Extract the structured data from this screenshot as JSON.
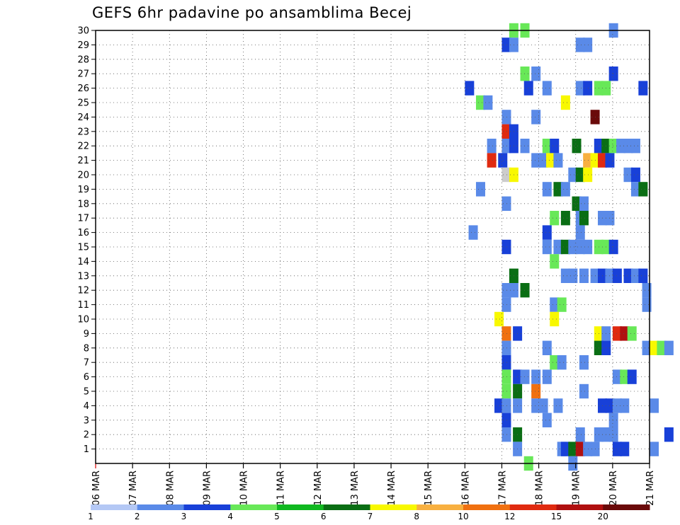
{
  "chart_data": {
    "type": "heatmap",
    "title": "GEFS 6hr padavine po ansamblima Becej",
    "xlabel": "",
    "ylabel": "",
    "x_range_days": [
      0,
      15
    ],
    "y_range": [
      0,
      30
    ],
    "x_tick_labels": [
      "06 MAR",
      "07 MAR",
      "08 MAR",
      "09 MAR",
      "10 MAR",
      "11 MAR",
      "12 MAR",
      "13 MAR",
      "14 MAR",
      "15 MAR",
      "16 MAR",
      "17 MAR",
      "18 MAR",
      "19 MAR",
      "20 MAR",
      "21 MAR"
    ],
    "y_tick_labels": [
      "1",
      "2",
      "3",
      "4",
      "5",
      "6",
      "7",
      "8",
      "9",
      "10",
      "11",
      "12",
      "13",
      "14",
      "15",
      "16",
      "17",
      "18",
      "19",
      "20",
      "21",
      "22",
      "23",
      "24",
      "25",
      "26",
      "27",
      "28",
      "29",
      "30"
    ],
    "grid": true,
    "legend_position": "bottom",
    "colorbar": {
      "labels": [
        "1",
        "2",
        "3",
        "4",
        "5",
        "6",
        "7",
        "8",
        "10",
        "12",
        "15",
        "20"
      ],
      "colors": [
        "#b4c8f5",
        "#5a8ae8",
        "#1840d8",
        "#68e858",
        "#10b820",
        "#0a6e14",
        "#f8f800",
        "#f8b040",
        "#f07010",
        "#e02a10",
        "#b01010",
        "#6a0a0a"
      ]
    },
    "cells": [
      [
        11.2,
        30,
        3
      ],
      [
        11.5,
        30,
        3
      ],
      [
        13.9,
        30,
        1
      ],
      [
        11.0,
        29,
        2
      ],
      [
        11.2,
        29,
        1
      ],
      [
        13.0,
        29,
        1
      ],
      [
        13.2,
        29,
        1
      ],
      [
        11.5,
        27,
        3
      ],
      [
        11.8,
        27,
        1
      ],
      [
        13.9,
        27,
        2
      ],
      [
        10.0,
        26,
        2
      ],
      [
        11.6,
        26,
        2
      ],
      [
        12.1,
        26,
        1
      ],
      [
        13.0,
        26,
        1
      ],
      [
        13.2,
        26,
        2
      ],
      [
        13.5,
        26,
        3
      ],
      [
        13.7,
        26,
        3
      ],
      [
        14.7,
        26,
        2
      ],
      [
        10.3,
        25,
        3
      ],
      [
        10.5,
        25,
        1
      ],
      [
        12.6,
        25,
        6
      ],
      [
        11.0,
        24,
        1
      ],
      [
        11.8,
        24,
        1
      ],
      [
        13.4,
        24,
        11
      ],
      [
        11.0,
        23,
        9
      ],
      [
        11.2,
        23,
        2
      ],
      [
        10.6,
        22,
        1
      ],
      [
        11.0,
        22,
        1
      ],
      [
        11.2,
        22,
        2
      ],
      [
        11.5,
        22,
        1
      ],
      [
        12.1,
        22,
        3
      ],
      [
        12.3,
        22,
        2
      ],
      [
        12.9,
        22,
        5
      ],
      [
        13.5,
        22,
        2
      ],
      [
        13.7,
        22,
        5
      ],
      [
        13.9,
        22,
        3
      ],
      [
        14.1,
        22,
        1
      ],
      [
        14.3,
        22,
        1
      ],
      [
        14.5,
        22,
        1
      ],
      [
        10.6,
        21,
        9
      ],
      [
        10.9,
        21,
        2
      ],
      [
        11.8,
        21,
        1
      ],
      [
        12.0,
        21,
        1
      ],
      [
        12.2,
        21,
        6
      ],
      [
        12.4,
        21,
        1
      ],
      [
        13.2,
        21,
        7
      ],
      [
        13.4,
        21,
        6
      ],
      [
        13.6,
        21,
        9
      ],
      [
        13.8,
        21,
        2
      ],
      [
        11.0,
        20,
        12
      ],
      [
        11.2,
        20,
        6
      ],
      [
        12.8,
        20,
        1
      ],
      [
        13.0,
        20,
        5
      ],
      [
        13.2,
        20,
        6
      ],
      [
        14.3,
        20,
        1
      ],
      [
        14.5,
        20,
        2
      ],
      [
        10.3,
        19,
        1
      ],
      [
        12.1,
        19,
        1
      ],
      [
        12.4,
        19,
        5
      ],
      [
        12.6,
        19,
        1
      ],
      [
        14.5,
        19,
        1
      ],
      [
        14.7,
        19,
        5
      ],
      [
        11.0,
        18,
        1
      ],
      [
        12.9,
        18,
        5
      ],
      [
        13.1,
        18,
        1
      ],
      [
        12.3,
        17,
        3
      ],
      [
        12.6,
        17,
        5
      ],
      [
        13.0,
        17,
        1
      ],
      [
        13.1,
        17,
        5
      ],
      [
        13.6,
        17,
        1
      ],
      [
        13.8,
        17,
        1
      ],
      [
        10.1,
        16,
        1
      ],
      [
        12.1,
        16,
        2
      ],
      [
        13.0,
        16,
        1
      ],
      [
        11.0,
        15,
        2
      ],
      [
        12.1,
        15,
        1
      ],
      [
        12.4,
        15,
        1
      ],
      [
        12.6,
        15,
        5
      ],
      [
        12.8,
        15,
        1
      ],
      [
        13.0,
        15,
        1
      ],
      [
        13.2,
        15,
        1
      ],
      [
        13.5,
        15,
        3
      ],
      [
        13.7,
        15,
        3
      ],
      [
        13.9,
        15,
        2
      ],
      [
        12.3,
        14,
        3
      ],
      [
        11.2,
        13,
        5
      ],
      [
        12.6,
        13,
        1
      ],
      [
        12.8,
        13,
        1
      ],
      [
        13.1,
        13,
        1
      ],
      [
        13.4,
        13,
        1
      ],
      [
        13.6,
        13,
        2
      ],
      [
        13.8,
        13,
        1
      ],
      [
        14.0,
        13,
        2
      ],
      [
        14.3,
        13,
        2
      ],
      [
        14.5,
        13,
        1
      ],
      [
        14.7,
        13,
        2
      ],
      [
        11.0,
        12,
        1
      ],
      [
        11.2,
        12,
        1
      ],
      [
        11.5,
        12,
        5
      ],
      [
        14.8,
        12,
        1
      ],
      [
        11.0,
        11,
        1
      ],
      [
        12.3,
        11,
        1
      ],
      [
        12.5,
        11,
        3
      ],
      [
        14.8,
        11,
        1
      ],
      [
        10.8,
        10,
        6
      ],
      [
        12.3,
        10,
        6
      ],
      [
        11.0,
        9,
        8
      ],
      [
        11.3,
        9,
        2
      ],
      [
        13.5,
        9,
        6
      ],
      [
        13.7,
        9,
        1
      ],
      [
        14.0,
        9,
        9
      ],
      [
        14.2,
        9,
        10
      ],
      [
        14.4,
        9,
        3
      ],
      [
        11.0,
        8,
        1
      ],
      [
        12.1,
        8,
        1
      ],
      [
        13.5,
        8,
        5
      ],
      [
        13.7,
        8,
        2
      ],
      [
        14.8,
        8,
        1
      ],
      [
        15.0,
        8,
        6
      ],
      [
        15.2,
        8,
        3
      ],
      [
        15.4,
        8,
        1
      ],
      [
        11.0,
        7,
        2
      ],
      [
        12.3,
        7,
        3
      ],
      [
        12.5,
        7,
        1
      ],
      [
        13.1,
        7,
        1
      ],
      [
        11.0,
        6,
        3
      ],
      [
        11.3,
        6,
        2
      ],
      [
        11.5,
        6,
        1
      ],
      [
        11.8,
        6,
        1
      ],
      [
        12.1,
        6,
        1
      ],
      [
        14.0,
        6,
        1
      ],
      [
        14.2,
        6,
        3
      ],
      [
        14.4,
        6,
        2
      ],
      [
        11.0,
        5,
        3
      ],
      [
        11.3,
        5,
        5
      ],
      [
        11.8,
        5,
        8
      ],
      [
        13.1,
        5,
        1
      ],
      [
        10.8,
        4,
        2
      ],
      [
        11.0,
        4,
        1
      ],
      [
        11.3,
        4,
        1
      ],
      [
        11.8,
        4,
        1
      ],
      [
        12.0,
        4,
        1
      ],
      [
        12.4,
        4,
        1
      ],
      [
        13.6,
        4,
        2
      ],
      [
        13.8,
        4,
        2
      ],
      [
        14.0,
        4,
        1
      ],
      [
        14.2,
        4,
        1
      ],
      [
        15.0,
        4,
        1
      ],
      [
        11.0,
        3,
        2
      ],
      [
        12.1,
        3,
        1
      ],
      [
        13.9,
        3,
        1
      ],
      [
        11.0,
        2,
        1
      ],
      [
        11.3,
        2,
        5
      ],
      [
        13.0,
        2,
        1
      ],
      [
        13.5,
        2,
        1
      ],
      [
        13.7,
        2,
        1
      ],
      [
        13.9,
        2,
        1
      ],
      [
        15.4,
        2,
        2
      ],
      [
        11.3,
        1,
        1
      ],
      [
        12.5,
        1,
        1
      ],
      [
        12.6,
        1,
        2
      ],
      [
        12.8,
        1,
        5
      ],
      [
        13.0,
        1,
        10
      ],
      [
        13.2,
        1,
        1
      ],
      [
        13.4,
        1,
        1
      ],
      [
        14.0,
        1,
        2
      ],
      [
        14.2,
        1,
        2
      ],
      [
        15.0,
        1,
        1
      ],
      [
        11.6,
        0,
        3
      ],
      [
        12.8,
        0,
        1
      ]
    ]
  }
}
